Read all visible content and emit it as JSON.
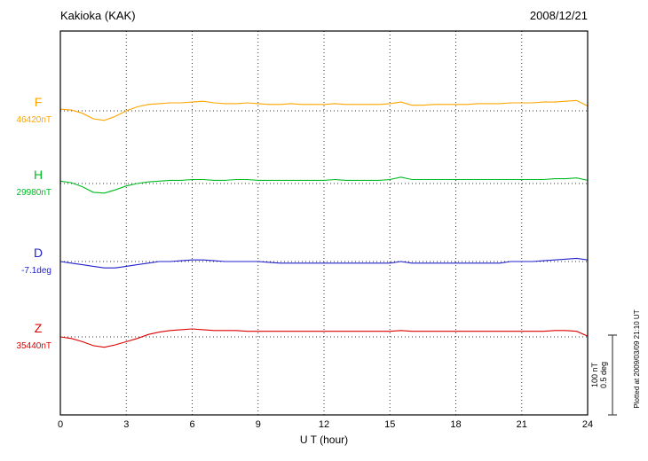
{
  "header": {
    "title": "Kakioka (KAK)",
    "date": "2008/12/21"
  },
  "chart_data": {
    "type": "line",
    "title": "Kakioka (KAK)",
    "subtitle": "2008/12/21",
    "xlabel": "U T (hour)",
    "x_range": [
      0,
      24
    ],
    "x_step_hours": 0.5,
    "x_ticks": [
      0,
      3,
      6,
      9,
      12,
      15,
      18,
      21,
      24
    ],
    "grid": "dotted-vertical-at-3h-and-dotted-baselines",
    "series": [
      {
        "name": "F",
        "baseline_label": "46420nT",
        "baseline_value": 46420,
        "unit": "nT",
        "color": "#FFA500",
        "offsets": [
          2,
          1,
          -3,
          -10,
          -12,
          -7,
          0,
          5,
          8,
          9,
          10,
          10,
          11,
          12,
          10,
          9,
          9,
          10,
          9,
          8,
          8,
          9,
          8,
          8,
          8,
          9,
          8,
          8,
          8,
          8,
          9,
          11,
          7,
          7,
          8,
          8,
          8,
          8,
          9,
          9,
          9,
          10,
          10,
          10,
          11,
          11,
          12,
          13,
          6
        ]
      },
      {
        "name": "H",
        "baseline_label": "29980nT",
        "baseline_value": 29980,
        "unit": "nT",
        "color": "#00BB22",
        "offsets": [
          3,
          1,
          -4,
          -11,
          -12,
          -8,
          -3,
          0,
          2,
          3,
          4,
          4,
          5,
          5,
          4,
          4,
          5,
          5,
          4,
          4,
          4,
          4,
          4,
          4,
          4,
          5,
          4,
          4,
          4,
          4,
          5,
          8,
          5,
          5,
          5,
          5,
          5,
          5,
          5,
          5,
          5,
          5,
          5,
          5,
          5,
          6,
          6,
          7,
          4
        ]
      },
      {
        "name": "D",
        "baseline_label": "-7.1deg",
        "baseline_value": -7.1,
        "unit": "deg",
        "color": "#2222CC",
        "offsets": [
          0,
          -0.01,
          -0.02,
          -0.03,
          -0.04,
          -0.04,
          -0.03,
          -0.02,
          -0.01,
          0,
          0,
          0.005,
          0.01,
          0.01,
          0.005,
          0,
          0,
          0,
          0,
          -0.005,
          -0.01,
          -0.01,
          -0.01,
          -0.01,
          -0.01,
          -0.01,
          -0.01,
          -0.01,
          -0.01,
          -0.01,
          -0.01,
          0,
          -0.01,
          -0.01,
          -0.01,
          -0.01,
          -0.01,
          -0.01,
          -0.01,
          -0.01,
          -0.01,
          0,
          0,
          0,
          0.005,
          0.01,
          0.015,
          0.02,
          0.01
        ]
      },
      {
        "name": "Z",
        "baseline_label": "35440nT",
        "baseline_value": 35440,
        "unit": "nT",
        "color": "#DD0000",
        "offsets": [
          0,
          -2,
          -6,
          -11,
          -13,
          -10,
          -6,
          -2,
          3,
          6,
          8,
          9,
          10,
          9,
          8,
          8,
          8,
          7,
          7,
          7,
          7,
          7,
          7,
          7,
          7,
          7,
          7,
          7,
          7,
          7,
          7,
          8,
          7,
          7,
          7,
          7,
          7,
          7,
          7,
          7,
          7,
          7,
          7,
          7,
          7,
          8,
          8,
          7,
          1
        ]
      }
    ],
    "scale_bar": {
      "label_nt": "100 nT",
      "label_deg": "0.5 deg",
      "nt_per_division": 100,
      "deg_per_division": 0.5
    },
    "footer_note": "Plotted at 2009/03/09 21:10 UT"
  }
}
